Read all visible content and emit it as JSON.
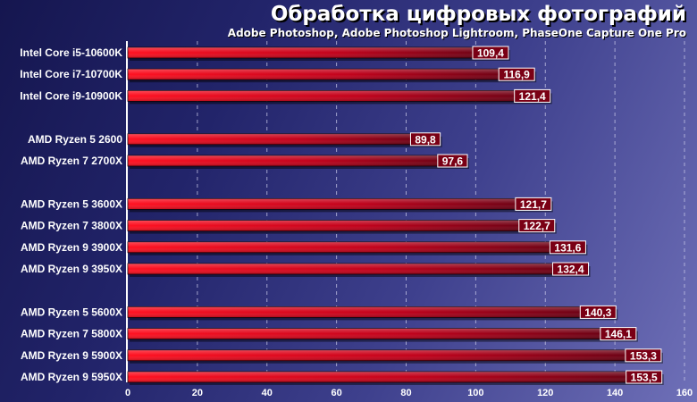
{
  "chart_data": {
    "type": "bar",
    "orientation": "horizontal",
    "title": "Обработка цифровых фотографий",
    "subtitle": "Adobe Photoshop, Adobe Photoshop Lightroom, PhaseOne Capture One Pro",
    "xlabel": "",
    "ylabel": "",
    "xlim": [
      0,
      160
    ],
    "xticks": [
      0,
      20,
      40,
      60,
      80,
      100,
      120,
      140,
      160
    ],
    "grid": true,
    "colors": {
      "bar_light": "#ff1020",
      "bar_dark": "#5e0012",
      "bar_edge": "#1a0008",
      "label_box": "#7a0015",
      "label_box_border": "#ffffff",
      "grid": "#c8c8e8"
    },
    "groups": [
      {
        "categories": [
          "Intel Core i5-10600K",
          "Intel Core i7-10700K",
          "Intel Core i9-10900K"
        ],
        "values": [
          109.4,
          116.9,
          121.4
        ],
        "labels": [
          "109,4",
          "116,9",
          "121,4"
        ]
      },
      {
        "categories": [
          "AMD Ryzen 5 2600",
          "AMD Ryzen 7 2700X"
        ],
        "values": [
          89.8,
          97.6
        ],
        "labels": [
          "89,8",
          "97,6"
        ]
      },
      {
        "categories": [
          "AMD Ryzen 5 3600X",
          "AMD Ryzen 7 3800X",
          "AMD Ryzen 9 3900X",
          "AMD Ryzen 9 3950X"
        ],
        "values": [
          121.7,
          122.7,
          131.6,
          132.4
        ],
        "labels": [
          "121,7",
          "122,7",
          "131,6",
          "132,4"
        ]
      },
      {
        "categories": [
          "AMD Ryzen 5 5600X",
          "AMD Ryzen 7 5800X",
          "AMD Ryzen 9 5900X",
          "AMD Ryzen 9 5950X"
        ],
        "values": [
          140.3,
          146.1,
          153.3,
          153.5
        ],
        "labels": [
          "140,3",
          "146,1",
          "153,3",
          "153,5"
        ]
      }
    ]
  }
}
